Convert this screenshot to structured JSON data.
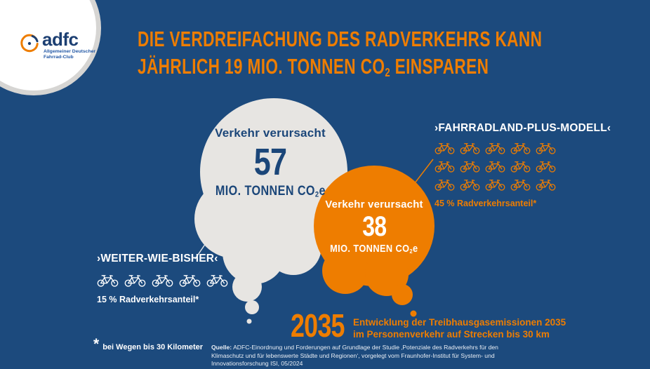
{
  "colors": {
    "background": "#1C4A7D",
    "orange": "#EE7D00",
    "cloud_gray": "#E7E5E2",
    "navy_text": "#1B4679",
    "white": "#FFFFFF"
  },
  "logo": {
    "brand": "adfc",
    "subtitle_line1": "Allgemeiner Deutscher",
    "subtitle_line2": "Fahrrad-Club"
  },
  "title": {
    "line1": "DIE VERDREIFACHUNG DES RADVERKEHRS KANN",
    "line2_prefix": "JÄHRLICH 19 MIO. TONNEN CO",
    "line2_sub": "2",
    "line2_suffix": " EINSPAREN"
  },
  "bubbles": {
    "baseline": {
      "label": "Verkehr verursacht",
      "value": "57",
      "unit_prefix": "MIO. TONNEN CO",
      "unit_sub": "2",
      "unit_suffix": "e"
    },
    "plus": {
      "label": "Verkehr verursacht",
      "value": "38",
      "unit_prefix": "MIO. TONNEN CO",
      "unit_sub": "2",
      "unit_suffix": "e"
    }
  },
  "scenarios": {
    "left": {
      "name": "›WEITER-WIE-BISHER‹",
      "share": "15 % Radverkehrsanteil*",
      "bike_rows": [
        5
      ]
    },
    "right": {
      "name": "›FAHRRADLAND-PLUS-MODELL‹",
      "share": "45 % Radverkehrsanteil*",
      "bike_rows": [
        5,
        5,
        5
      ]
    }
  },
  "timeline": {
    "year": "2035",
    "desc_line1": "Entwicklung der Treibhausgasemissionen 2035",
    "desc_line2": "im Personenverkehr auf Strecken bis 30 km"
  },
  "footnote": {
    "marker": "*",
    "text": "bei Wegen bis 30 Kilometer"
  },
  "source": {
    "label": "Quelle:",
    "text": "ADFC-Einordnung und Forderungen auf Grundlage der Studie ‚Potenziale des Radverkehrs für den Klimaschutz und für lebenswerte Städte und Regionen‘, vorgelegt vom Fraunhofer-Institut für System- und Innovationsforschung ISI, 05/2024"
  }
}
